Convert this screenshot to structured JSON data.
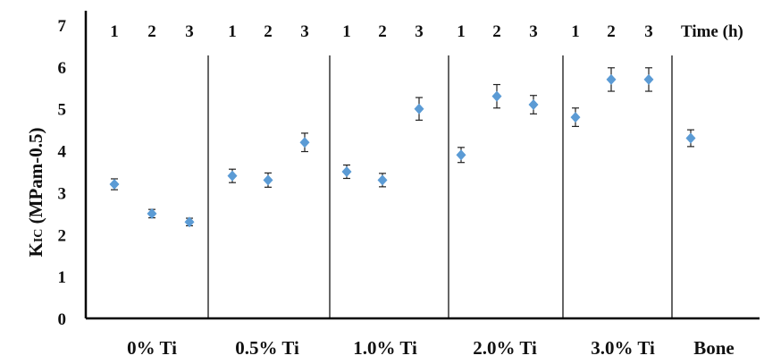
{
  "chart_data": {
    "type": "scatter",
    "ylabel": "KIC (MPam-0.5)",
    "ylabel_main": "K",
    "ylabel_sub": "IC",
    "ylabel_rest": " (MPam-0.5)",
    "ylim": [
      0,
      7
    ],
    "yticks": [
      "0",
      "1",
      "2",
      "3",
      "4",
      "5",
      "6",
      "7"
    ],
    "time_label": "Time (h)",
    "time_ticks": [
      "1",
      "2",
      "3",
      "1",
      "2",
      "3",
      "1",
      "2",
      "3",
      "1",
      "2",
      "3",
      "1",
      "2",
      "3"
    ],
    "groups": [
      "0% Ti",
      "0.5% Ti",
      "1.0% Ti",
      "2.0% Ti",
      "3.0% Ti",
      "Bone"
    ],
    "marker_color": "#5b9bd5",
    "points": [
      {
        "group": "0% Ti",
        "time": 1,
        "y": 3.2,
        "err": 0.13
      },
      {
        "group": "0% Ti",
        "time": 2,
        "y": 2.5,
        "err": 0.1
      },
      {
        "group": "0% Ti",
        "time": 3,
        "y": 2.3,
        "err": 0.09
      },
      {
        "group": "0.5% Ti",
        "time": 1,
        "y": 3.4,
        "err": 0.16
      },
      {
        "group": "0.5% Ti",
        "time": 2,
        "y": 3.3,
        "err": 0.17
      },
      {
        "group": "0.5% Ti",
        "time": 3,
        "y": 4.2,
        "err": 0.22
      },
      {
        "group": "1.0% Ti",
        "time": 1,
        "y": 3.5,
        "err": 0.16
      },
      {
        "group": "1.0% Ti",
        "time": 2,
        "y": 3.3,
        "err": 0.16
      },
      {
        "group": "1.0% Ti",
        "time": 3,
        "y": 5.0,
        "err": 0.27
      },
      {
        "group": "2.0% Ti",
        "time": 1,
        "y": 3.9,
        "err": 0.18
      },
      {
        "group": "2.0% Ti",
        "time": 2,
        "y": 5.3,
        "err": 0.28
      },
      {
        "group": "2.0% Ti",
        "time": 3,
        "y": 5.1,
        "err": 0.22
      },
      {
        "group": "3.0% Ti",
        "time": 1,
        "y": 4.8,
        "err": 0.22
      },
      {
        "group": "3.0% Ti",
        "time": 2,
        "y": 5.7,
        "err": 0.28
      },
      {
        "group": "3.0% Ti",
        "time": 3,
        "y": 5.7,
        "err": 0.28
      },
      {
        "group": "Bone",
        "time": null,
        "y": 4.3,
        "err": 0.2
      }
    ]
  }
}
